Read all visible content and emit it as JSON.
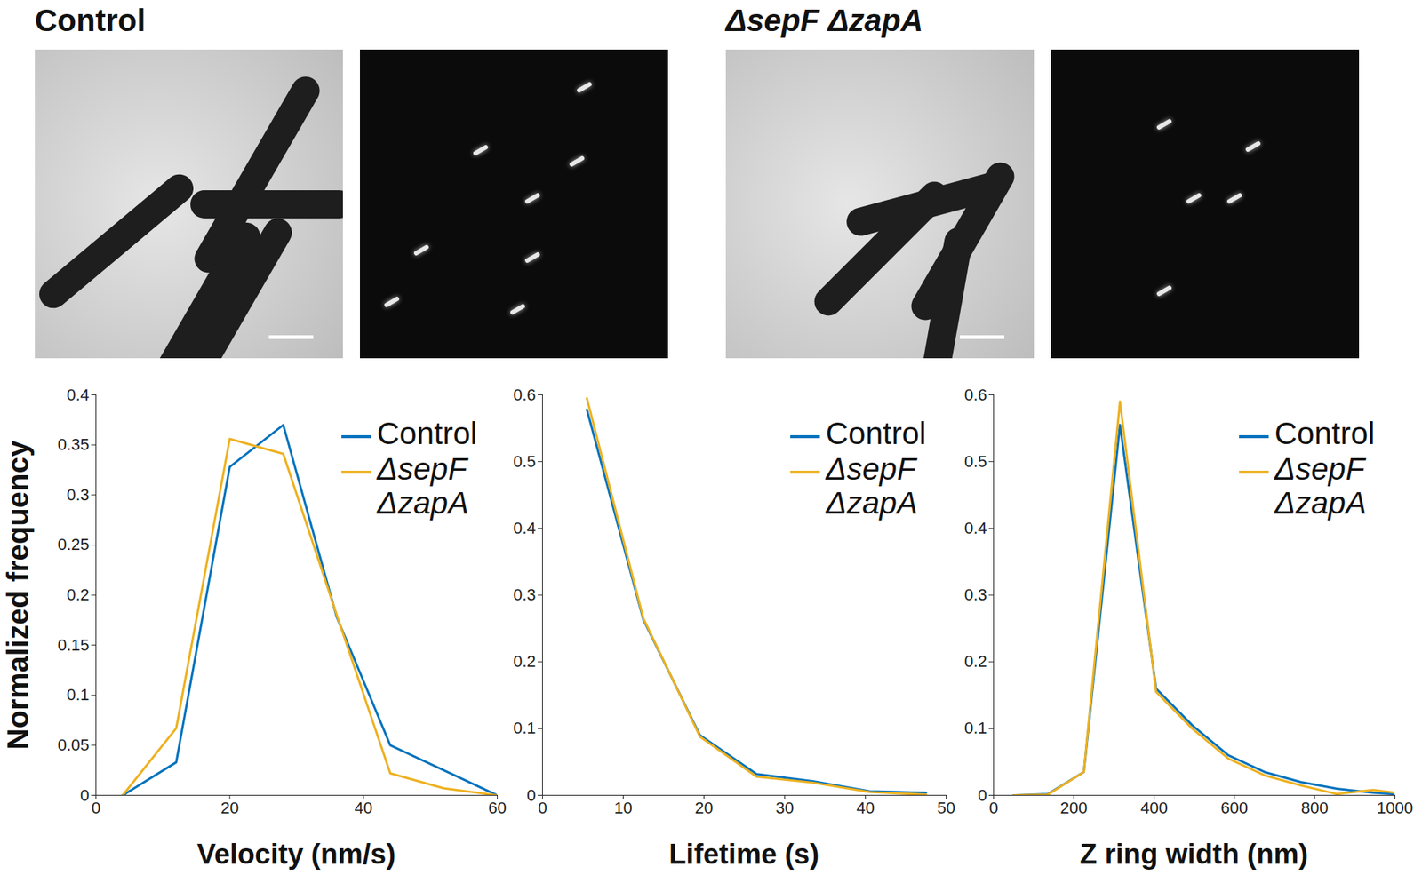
{
  "header": {
    "panels": [
      "Control",
      "ΔsepF ΔzapA"
    ]
  },
  "chart_data": [
    {
      "type": "line",
      "x_label": "Velocity (nm/s)",
      "y_label": "Normalized frequency",
      "x": [
        4,
        12,
        20,
        28,
        36,
        44,
        52,
        60
      ],
      "series": [
        {
          "name": "Control",
          "color": "#0072bd",
          "values": [
            0,
            0.033,
            0.328,
            0.37,
            0.178,
            0.05,
            0.025,
            0
          ]
        },
        {
          "name": "ΔsepF ΔzapA",
          "color": "#edb120",
          "values": [
            0,
            0.067,
            0.356,
            0.341,
            0.18,
            0.022,
            0.007,
            0
          ]
        }
      ],
      "xlim": [
        0,
        60
      ],
      "xticks": [
        0,
        20,
        40,
        60
      ],
      "ylim": [
        0,
        0.4
      ],
      "yticks": [
        0,
        0.05,
        0.1,
        0.15,
        0.2,
        0.25,
        0.3,
        0.35,
        0.4
      ],
      "legend": "upper right"
    },
    {
      "type": "line",
      "x_label": "Lifetime (s)",
      "x": [
        5.5,
        12.5,
        19.5,
        26.5,
        33.5,
        40.5,
        47.5
      ],
      "series": [
        {
          "name": "Control",
          "color": "#0072bd",
          "values": [
            0.578,
            0.263,
            0.09,
            0.032,
            0.021,
            0.006,
            0.004
          ]
        },
        {
          "name": "ΔsepF ΔzapA",
          "color": "#edb120",
          "values": [
            0.595,
            0.265,
            0.088,
            0.028,
            0.019,
            0.005,
            0.001
          ]
        }
      ],
      "xlim": [
        0,
        50
      ],
      "xticks": [
        0,
        10,
        20,
        30,
        40,
        50
      ],
      "ylim": [
        0,
        0.6
      ],
      "yticks": [
        0,
        0.1,
        0.2,
        0.3,
        0.4,
        0.5,
        0.6
      ],
      "legend": "upper right"
    },
    {
      "type": "line",
      "x_label": "Z ring width (nm)",
      "x": [
        50,
        135,
        225,
        315,
        405,
        495,
        585,
        675,
        765,
        855,
        945,
        1000
      ],
      "series": [
        {
          "name": "Control",
          "color": "#0072bd",
          "values": [
            0,
            0.002,
            0.035,
            0.555,
            0.16,
            0.105,
            0.06,
            0.035,
            0.02,
            0.01,
            0.004,
            0.002
          ]
        },
        {
          "name": "ΔsepF ΔzapA",
          "color": "#edb120",
          "values": [
            0,
            0.001,
            0.035,
            0.59,
            0.155,
            0.1,
            0.055,
            0.03,
            0.015,
            0.002,
            0.008,
            0.004
          ]
        }
      ],
      "xlim": [
        0,
        1000
      ],
      "xticks": [
        0,
        200,
        400,
        600,
        800,
        1000
      ],
      "ylim": [
        0,
        0.6
      ],
      "yticks": [
        0,
        0.1,
        0.2,
        0.3,
        0.4,
        0.5,
        0.6
      ],
      "legend": "upper right"
    }
  ]
}
